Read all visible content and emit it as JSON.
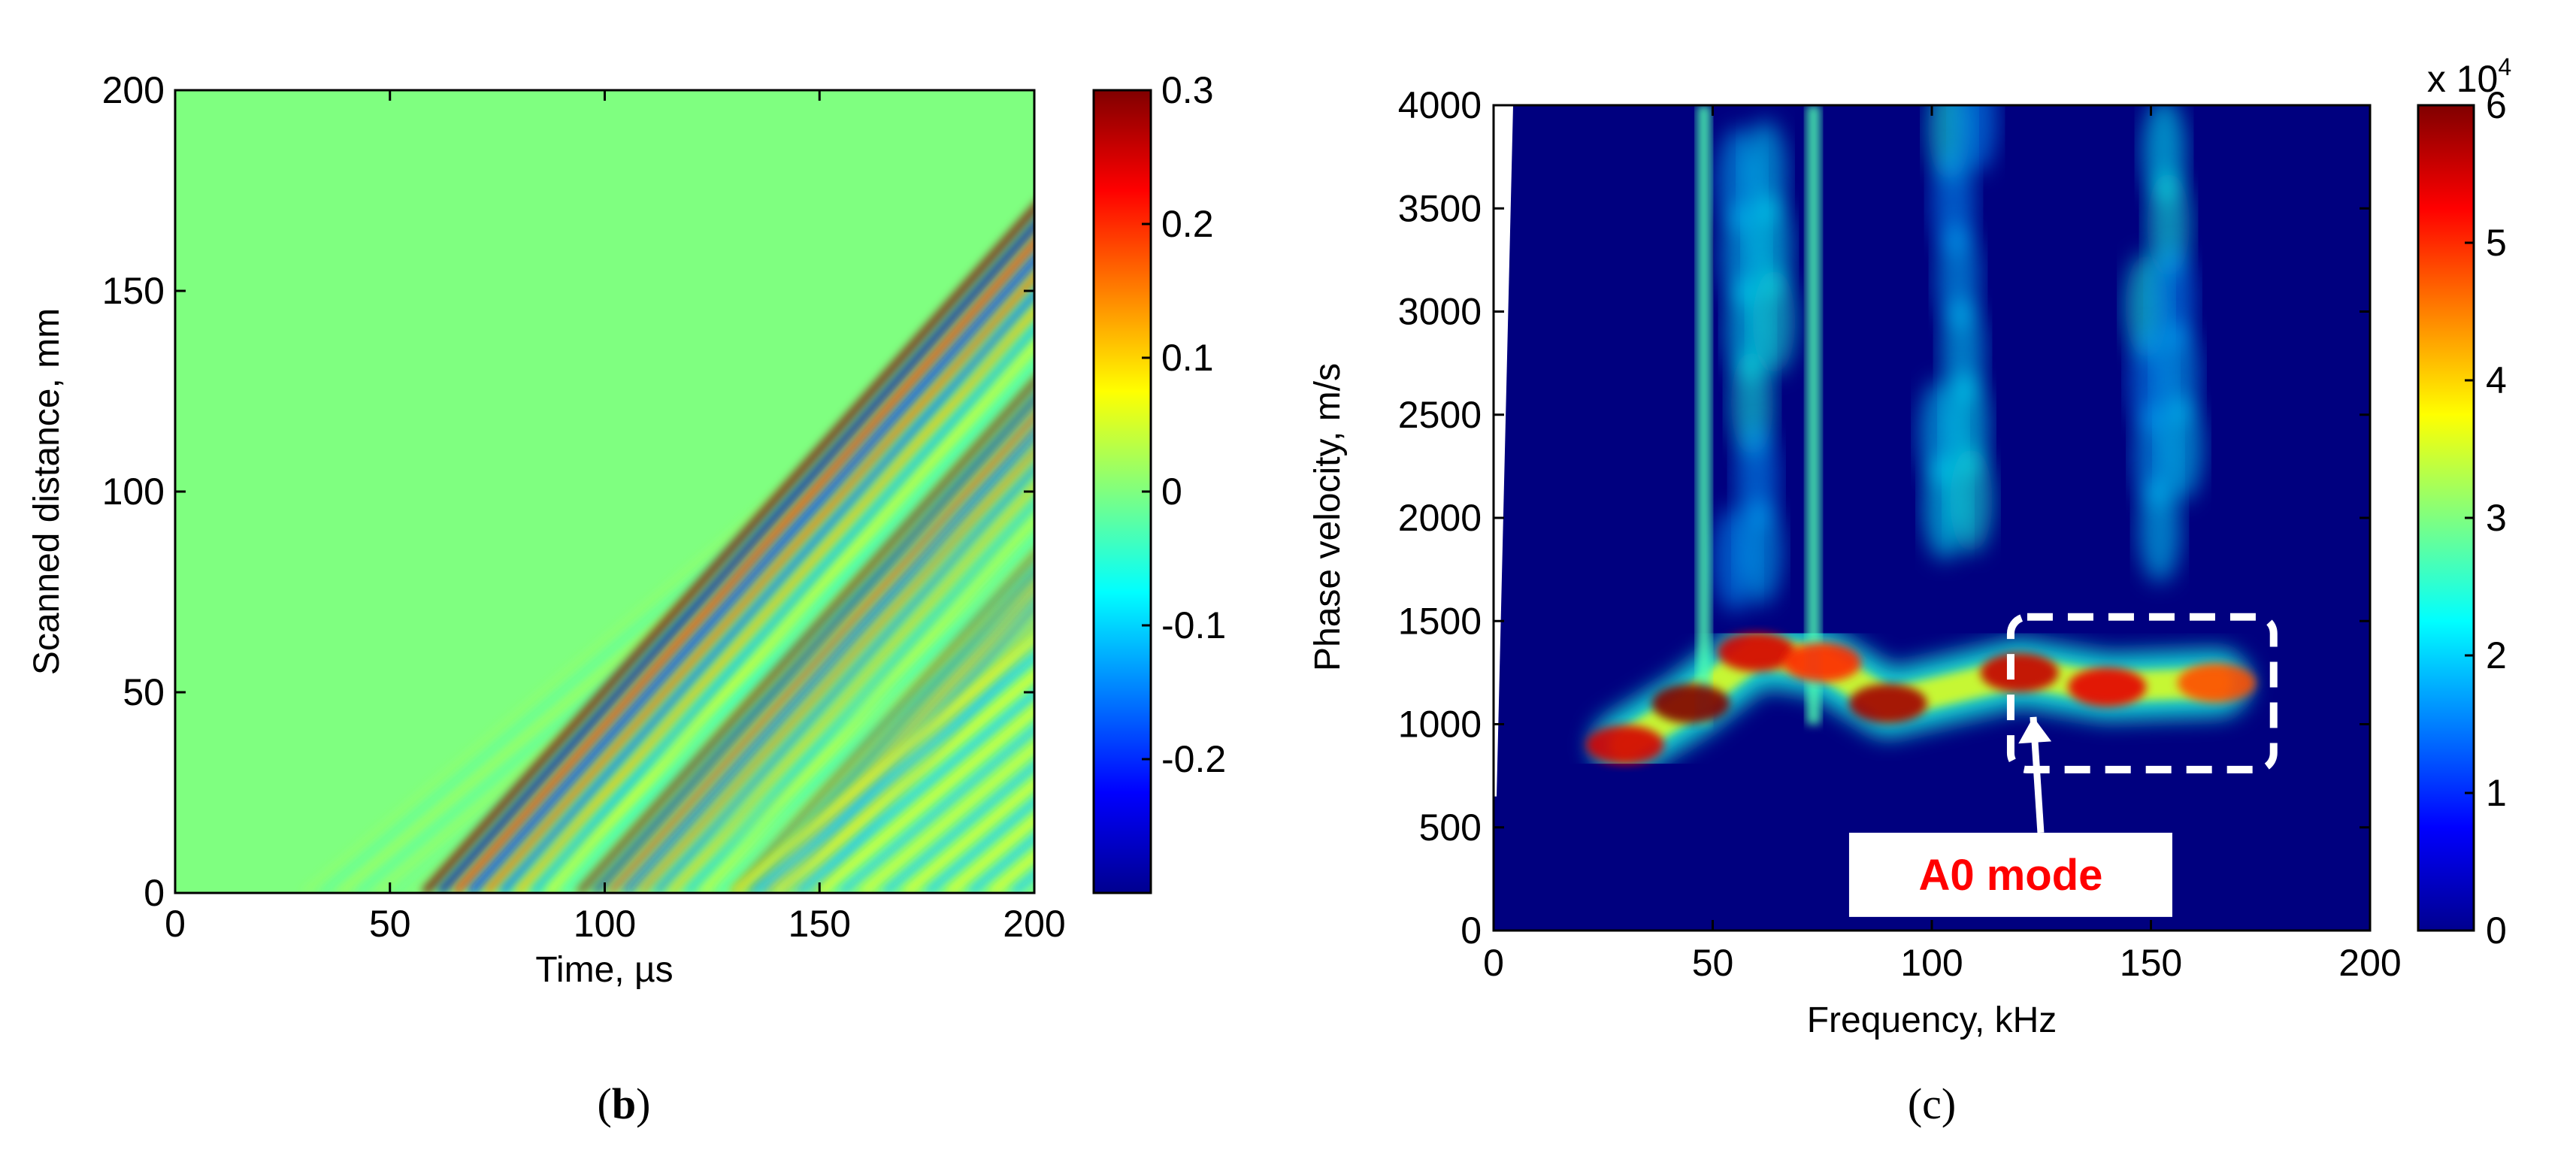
{
  "chart_data": [
    {
      "panel": "b",
      "type": "heatmap",
      "xlabel": "Time, µs",
      "ylabel": "Scanned distance, mm",
      "xlim": [
        0,
        200
      ],
      "ylim": [
        0,
        200
      ],
      "xticks": [
        "0",
        "50",
        "100",
        "150",
        "200"
      ],
      "yticks": [
        "0",
        "50",
        "100",
        "150",
        "200"
      ],
      "colorbar": {
        "range": [
          -0.3,
          0.3
        ],
        "ticks": [
          "0.3",
          "0.2",
          "0.1",
          "0",
          "-0.1",
          "-0.2"
        ],
        "colormap": "jet"
      },
      "wave_fronts": [
        {
          "name": "leading",
          "start_time": 30,
          "speed_mm_per_us": 0.9
        },
        {
          "name": "dominant",
          "start_time": 58,
          "speed_mm_per_us": 1.2
        },
        {
          "name": "trailing",
          "start_time": 130,
          "speed_mm_per_us": 0.9
        }
      ]
    },
    {
      "panel": "c",
      "type": "heatmap",
      "xlabel": "Frequency, kHz",
      "ylabel": "Phase velocity, m/s",
      "xlim": [
        0,
        200
      ],
      "ylim": [
        0,
        4000
      ],
      "xticks": [
        "0",
        "50",
        "100",
        "150",
        "200"
      ],
      "yticks": [
        "0",
        "500",
        "1000",
        "1500",
        "2000",
        "2500",
        "3000",
        "3500",
        "4000"
      ],
      "colorbar": {
        "range": [
          0,
          6
        ],
        "ticks": [
          "6",
          "5",
          "4",
          "3",
          "2",
          "1",
          "0"
        ],
        "multiplier_base": "x 10",
        "multiplier_exponent": "4",
        "colormap": "jet"
      },
      "ridges": [
        {
          "freq": 30,
          "velocity": 900,
          "level": 5.5
        },
        {
          "freq": 45,
          "velocity": 1100,
          "level": 6
        },
        {
          "freq": 60,
          "velocity": 1350,
          "level": 5.5
        },
        {
          "freq": 75,
          "velocity": 1300,
          "level": 5
        },
        {
          "freq": 90,
          "velocity": 1100,
          "level": 5.8
        },
        {
          "freq": 120,
          "velocity": 1250,
          "level": 5.6
        },
        {
          "freq": 140,
          "velocity": 1180,
          "level": 5.4
        },
        {
          "freq": 165,
          "velocity": 1200,
          "level": 4.8
        }
      ],
      "vertical_streaks_khz": [
        48,
        73
      ],
      "annotation": {
        "text": "A0 mode",
        "box_freq": [
          118,
          178
        ],
        "box_velocity": [
          780,
          1520
        ],
        "label_freq": 118,
        "label_velocity": 270
      }
    }
  ],
  "panel_labels": {
    "b_open": "(",
    "b_letter": "b",
    "b_close": ")",
    "c_text": "(c)"
  }
}
